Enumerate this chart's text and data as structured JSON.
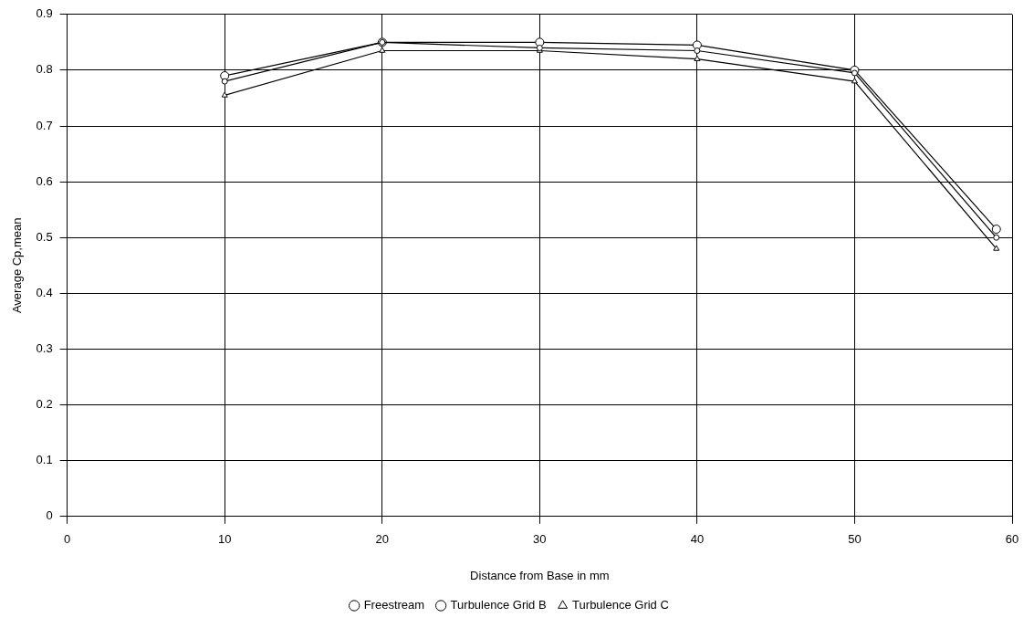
{
  "chart_data": {
    "type": "line",
    "xlabel": "Distance from Base in mm",
    "ylabel": "Average Cp,mean",
    "xlim": [
      0,
      60
    ],
    "xticks": [
      0,
      10,
      20,
      30,
      40,
      50,
      60
    ],
    "ylim": [
      0,
      0.9
    ],
    "yticks": [
      0,
      0.1,
      0.2,
      0.3,
      0.4,
      0.5,
      0.6,
      0.7,
      0.8,
      0.9
    ],
    "x": [
      10,
      20,
      30,
      40,
      50,
      59
    ],
    "grid": true,
    "legend": "bottom",
    "line_style": "solid",
    "series": [
      {
        "name": "Freestream",
        "color": "#000000",
        "marker": "circle",
        "values": [
          0.79,
          0.85,
          0.85,
          0.845,
          0.8,
          0.515
        ]
      },
      {
        "name": "Turbulence Grid B",
        "color": "#000000",
        "marker": "circle",
        "values": [
          0.78,
          0.85,
          0.84,
          0.835,
          0.795,
          0.5
        ]
      },
      {
        "name": "Turbulence Grid C",
        "color": "#000000",
        "marker": "triangle",
        "values": [
          0.755,
          0.835,
          0.835,
          0.82,
          0.78,
          0.48
        ]
      }
    ]
  }
}
